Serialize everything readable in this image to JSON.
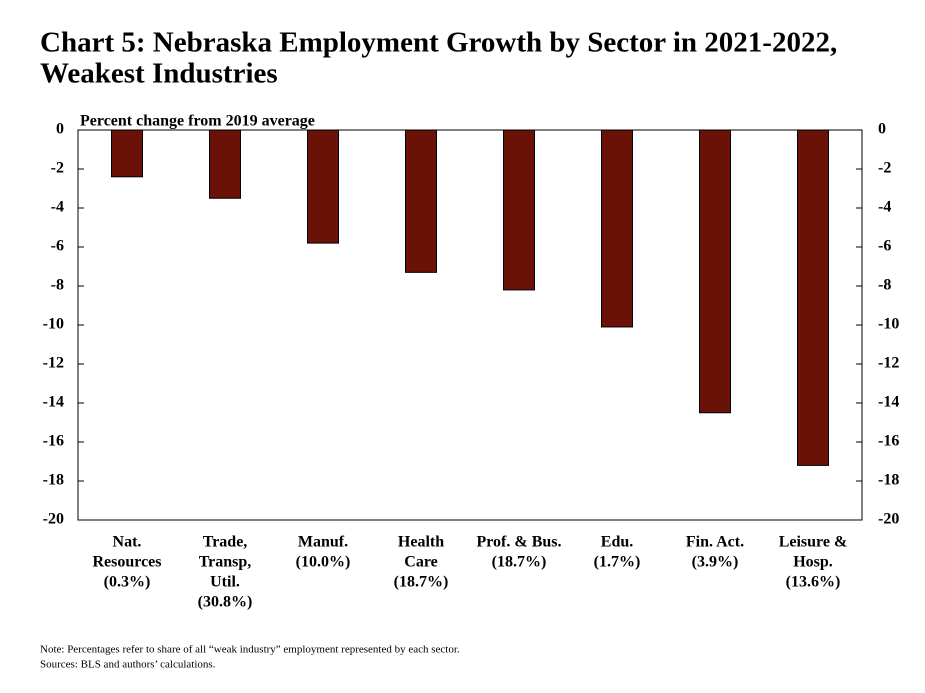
{
  "chart_data": {
    "type": "bar",
    "title": [
      "Chart 5: Nebraska Employment Growth by Sector in 2021-2022,",
      "Weakest Industries"
    ],
    "y_label": "Percent change from 2019 average",
    "categories": [
      [
        "Nat.",
        "Resources",
        "(0.3%)"
      ],
      [
        "Trade,",
        "Transp,",
        "Util.",
        "(30.8%)"
      ],
      [
        "Manuf.",
        "(10.0%)"
      ],
      [
        "Health",
        "Care",
        "(18.7%)"
      ],
      [
        "Prof. & Bus.",
        "(18.7%)"
      ],
      [
        "Edu.",
        "(1.7%)"
      ],
      [
        "Fin. Act.",
        "(3.9%)"
      ],
      [
        "Leisure &",
        "Hosp.",
        "(13.6%)"
      ]
    ],
    "values": [
      -2.4,
      -3.5,
      -5.8,
      -7.3,
      -8.2,
      -10.1,
      -14.5,
      -17.2
    ],
    "color": "#6b1208",
    "ylim": [
      -20,
      0
    ],
    "yticks": [
      0,
      -2,
      -4,
      -6,
      -8,
      -10,
      -12,
      -14,
      -16,
      -18,
      -20
    ],
    "y2lim": [
      -20,
      0
    ],
    "y2ticks": [
      0,
      -2,
      -4,
      -6,
      -8,
      -10,
      -12,
      -14,
      -16,
      -18,
      -20
    ],
    "notes": [
      "Note: Percentages refer to share of all “weak industry” employment represented by each sector.",
      "Sources: BLS  and authors’ calculations."
    ]
  }
}
